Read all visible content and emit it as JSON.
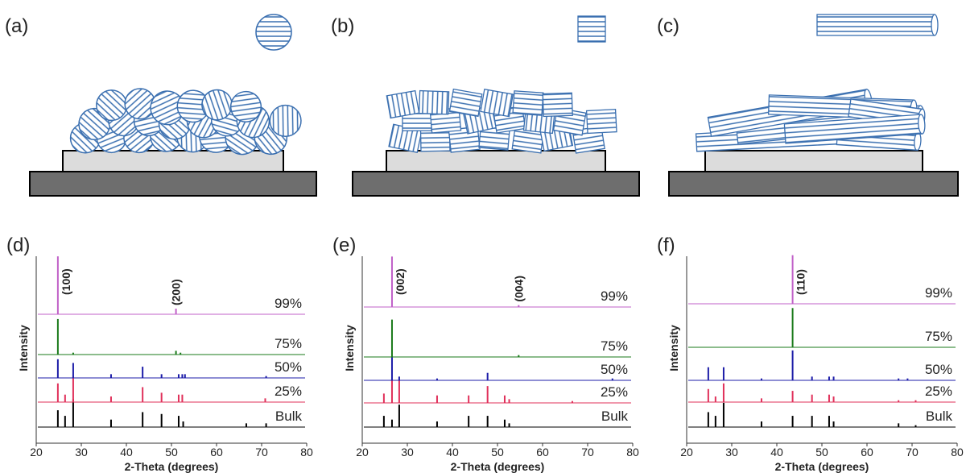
{
  "panels_top": [
    {
      "label": "(a)"
    },
    {
      "label": "(b)"
    },
    {
      "label": "(c)"
    }
  ],
  "chart_data": [
    {
      "type": "stick",
      "label": "(d)",
      "xlabel": "2-Theta (degrees)",
      "ylabel": "Intensity",
      "xlim": [
        20,
        80
      ],
      "xticks": [
        20,
        30,
        40,
        50,
        60,
        70,
        80
      ],
      "ylim": [
        0,
        100
      ],
      "series": [
        {
          "name": "Bulk",
          "color": "#000000",
          "x": [
            24.8,
            26.4,
            28.2,
            36.6,
            43.6,
            47.8,
            51.6,
            52.6,
            66.6,
            71.0
          ],
          "values": [
            9,
            6,
            15,
            4,
            8,
            7,
            6,
            3,
            2,
            2
          ]
        },
        {
          "name": "25%",
          "color": "#e0305a",
          "x": [
            24.8,
            26.4,
            28.2,
            36.6,
            43.6,
            47.8,
            51.6,
            52.4,
            70.8
          ],
          "values": [
            10,
            4,
            14,
            3,
            8,
            5,
            4,
            4,
            2
          ]
        },
        {
          "name": "50%",
          "color": "#1c1ca8",
          "x": [
            24.8,
            28.2,
            36.6,
            43.6,
            47.8,
            51.6,
            52.4,
            53.0,
            71.0
          ],
          "values": [
            10,
            8,
            2,
            6,
            2,
            2,
            2,
            2,
            1
          ]
        },
        {
          "name": "75%",
          "color": "#1a7a1a",
          "x": [
            24.8,
            28.2,
            51.0,
            52.0
          ],
          "values": [
            19,
            1,
            2,
            1
          ]
        },
        {
          "name": "99%",
          "color": "#c060c8",
          "x": [
            24.8,
            51.0
          ],
          "values": [
            31,
            3
          ]
        }
      ],
      "annotations": [
        {
          "text": "(100)",
          "x": 24.8
        },
        {
          "text": "(200)",
          "x": 51.0
        }
      ]
    },
    {
      "type": "stick",
      "label": "(e)",
      "xlabel": "2-Theta (degrees)",
      "ylabel": "Intensity",
      "xlim": [
        20,
        80
      ],
      "xticks": [
        20,
        30,
        40,
        50,
        60,
        70,
        80
      ],
      "ylim": [
        0,
        100
      ],
      "series": [
        {
          "name": "Bulk",
          "color": "#000000",
          "x": [
            24.8,
            26.6,
            28.2,
            36.6,
            43.6,
            47.8,
            51.6,
            52.6
          ],
          "values": [
            6,
            4,
            12,
            3,
            6,
            6,
            4,
            2
          ]
        },
        {
          "name": "25%",
          "color": "#e0305a",
          "x": [
            24.8,
            26.6,
            28.2,
            36.6,
            43.6,
            47.8,
            51.6,
            52.6,
            66.6
          ],
          "values": [
            5,
            12,
            12,
            4,
            4,
            9,
            4,
            2,
            1
          ]
        },
        {
          "name": "50%",
          "color": "#1c1ca8",
          "x": [
            26.6,
            28.2,
            36.6,
            47.8,
            75.5
          ],
          "values": [
            13,
            2,
            1,
            4,
            1
          ]
        },
        {
          "name": "75%",
          "color": "#1a7a1a",
          "x": [
            26.6,
            54.7
          ],
          "values": [
            20,
            1
          ]
        },
        {
          "name": "99%",
          "color": "#c060c8",
          "x": [
            26.6,
            54.7
          ],
          "values": [
            27,
            1
          ]
        }
      ],
      "annotations": [
        {
          "text": "(002)",
          "x": 26.6
        },
        {
          "text": "(004)",
          "x": 54.7
        }
      ]
    },
    {
      "type": "stick",
      "label": "(f)",
      "xlabel": "2-Theta (degrees)",
      "ylabel": "Intensity",
      "xlim": [
        20,
        80
      ],
      "xticks": [
        20,
        30,
        40,
        50,
        60,
        70,
        80
      ],
      "ylim": [
        0,
        100
      ],
      "series": [
        {
          "name": "Bulk",
          "color": "#000000",
          "x": [
            24.8,
            26.4,
            28.2,
            36.6,
            43.5,
            47.8,
            51.6,
            52.6,
            67.0,
            70.8
          ],
          "values": [
            8,
            6,
            13,
            3,
            6,
            6,
            6,
            3,
            2,
            1
          ]
        },
        {
          "name": "25%",
          "color": "#e0305a",
          "x": [
            24.8,
            26.4,
            28.2,
            36.6,
            43.5,
            47.8,
            51.6,
            52.6,
            67.0,
            70.8
          ],
          "values": [
            7,
            3,
            10,
            2,
            6,
            4,
            4,
            3,
            1,
            1
          ]
        },
        {
          "name": "50%",
          "color": "#1c1ca8",
          "x": [
            24.8,
            28.2,
            36.6,
            43.5,
            47.8,
            51.6,
            52.6,
            67.0,
            69.0
          ],
          "values": [
            7,
            7,
            1,
            16,
            2,
            2,
            2,
            1,
            1
          ]
        },
        {
          "name": "75%",
          "color": "#1a7a1a",
          "x": [
            43.5
          ],
          "values": [
            21
          ]
        },
        {
          "name": "99%",
          "color": "#c060c8",
          "x": [
            43.5
          ],
          "values": [
            26
          ]
        }
      ],
      "annotations": [
        {
          "text": "(110)",
          "x": 43.5
        }
      ]
    }
  ]
}
